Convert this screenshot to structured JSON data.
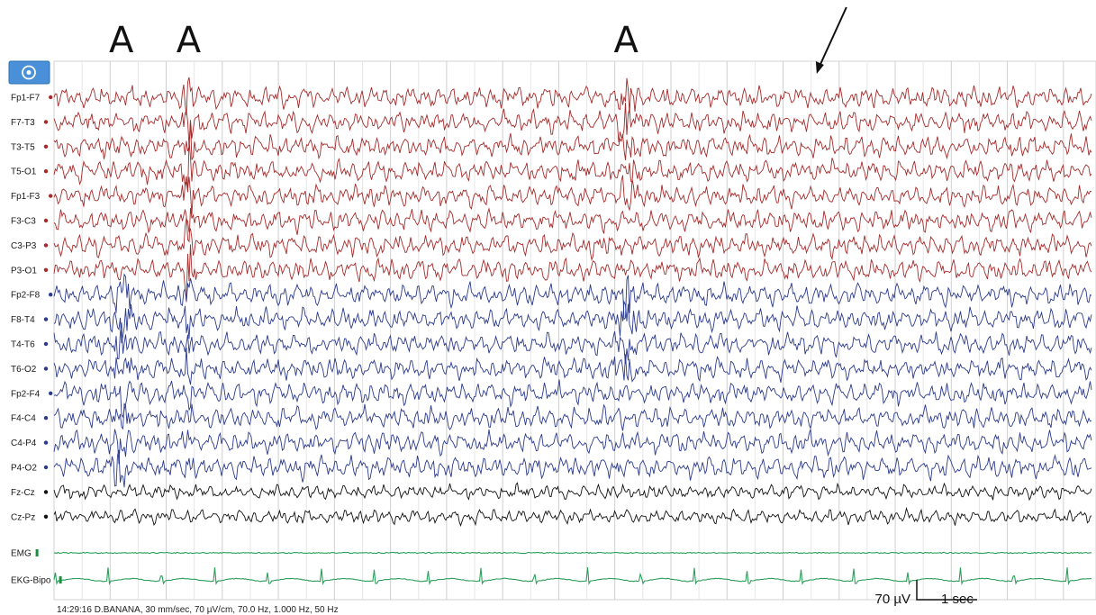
{
  "chart_data": {
    "type": "line",
    "title": "",
    "xlabel": "",
    "ylabel": "",
    "channels": [
      {
        "name": "Fp1-F7",
        "group": "left",
        "color": "#a52a2a",
        "marker": "#a52a2a"
      },
      {
        "name": "F7-T3",
        "group": "left",
        "color": "#a52a2a",
        "marker": "#a52a2a"
      },
      {
        "name": "T3-T5",
        "group": "left",
        "color": "#a52a2a",
        "marker": "#a52a2a"
      },
      {
        "name": "T5-O1",
        "group": "left",
        "color": "#a52a2a",
        "marker": "#a52a2a"
      },
      {
        "name": "Fp1-F3",
        "group": "left",
        "color": "#a52a2a",
        "marker": "#a52a2a"
      },
      {
        "name": "F3-C3",
        "group": "left",
        "color": "#a52a2a",
        "marker": "#a52a2a"
      },
      {
        "name": "C3-P3",
        "group": "left",
        "color": "#a52a2a",
        "marker": "#a52a2a"
      },
      {
        "name": "P3-O1",
        "group": "left",
        "color": "#a52a2a",
        "marker": "#a52a2a"
      },
      {
        "name": "Fp2-F8",
        "group": "right",
        "color": "#2b3a8c",
        "marker": "#2b3a8c"
      },
      {
        "name": "F8-T4",
        "group": "right",
        "color": "#2b3a8c",
        "marker": "#2b3a8c"
      },
      {
        "name": "T4-T6",
        "group": "right",
        "color": "#2b3a8c",
        "marker": "#2b3a8c"
      },
      {
        "name": "T6-O2",
        "group": "right",
        "color": "#2b3a8c",
        "marker": "#2b3a8c"
      },
      {
        "name": "Fp2-F4",
        "group": "right",
        "color": "#2b3a8c",
        "marker": "#2b3a8c"
      },
      {
        "name": "F4-C4",
        "group": "right",
        "color": "#2b3a8c",
        "marker": "#2b3a8c"
      },
      {
        "name": "C4-P4",
        "group": "right",
        "color": "#2b3a8c",
        "marker": "#2b3a8c"
      },
      {
        "name": "P4-O2",
        "group": "right",
        "color": "#2b3a8c",
        "marker": "#2b3a8c"
      },
      {
        "name": "Fz-Cz",
        "group": "midline",
        "color": "#111111",
        "marker": "#111111"
      },
      {
        "name": "Cz-Pz",
        "group": "midline",
        "color": "#111111",
        "marker": "#111111"
      },
      {
        "name": "EMG",
        "group": "emg",
        "color": "#2e9e5b",
        "marker": "#1f8a44"
      },
      {
        "name": "EKG-Bipo",
        "group": "ekg",
        "color": "#2e9e5b",
        "marker": "#1f8a44"
      }
    ],
    "annotations": [
      {
        "label": "A",
        "time_s": 1.2
      },
      {
        "label": "A",
        "time_s": 2.4
      },
      {
        "label": "A",
        "time_s": 10.2
      },
      {
        "label": "",
        "type": "arrow",
        "time_s": 13.6
      }
    ],
    "duration_s": 18.5,
    "scale_bar": {
      "amplitude_label": "70 µV",
      "time_label": "1 sec",
      "time_s": 1
    },
    "grid": true
  },
  "status_bar": {
    "text": "14:29:16 D.BANANA, 30 mm/sec, 70 µV/cm, 70.0 Hz, 1.000 Hz, 50 Hz"
  },
  "toolbar": {
    "icon": "target-icon",
    "color": "#4a90d9"
  }
}
